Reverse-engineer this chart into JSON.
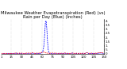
{
  "title": "Milwaukee Weather Evapotranspiration (Red) (vs) Rain per Day (Blue) (Inches)",
  "background_color": "#ffffff",
  "x_values": [
    1,
    2,
    3,
    4,
    5,
    6,
    7,
    8,
    9,
    10,
    11,
    12,
    13,
    14,
    15,
    16,
    17,
    18,
    19,
    20,
    21,
    22,
    23,
    24,
    25,
    26,
    27,
    28,
    29,
    30,
    31,
    32,
    33,
    34,
    35,
    36,
    37,
    38,
    39,
    40,
    41,
    42,
    43,
    44,
    45,
    46,
    47,
    48,
    49,
    50,
    51,
    52,
    53,
    54,
    55,
    56,
    57,
    58,
    59,
    60,
    61,
    62,
    63,
    64,
    65,
    66,
    67,
    68,
    69,
    70,
    71,
    72,
    73,
    74,
    75,
    76,
    77,
    78,
    79,
    80,
    81,
    82,
    83,
    84,
    85,
    86,
    87,
    88,
    89,
    90,
    91,
    92,
    93,
    94,
    95,
    96,
    97,
    98,
    99,
    100,
    101,
    102,
    103,
    104,
    105,
    106,
    107,
    108,
    109,
    110,
    111,
    112,
    113,
    114,
    115,
    116,
    117,
    118,
    119,
    120,
    121,
    122,
    123,
    124,
    125,
    126,
    127,
    128,
    129,
    130,
    131,
    132,
    133,
    134,
    135,
    136,
    137,
    138,
    139,
    140,
    141,
    142,
    143,
    144,
    145,
    146,
    147,
    148,
    149,
    150
  ],
  "blue_values": [
    0.05,
    0.0,
    0.0,
    0.05,
    0.0,
    0.05,
    0.0,
    0.0,
    0.05,
    0.05,
    0.0,
    0.0,
    0.05,
    0.05,
    0.0,
    0.05,
    0.0,
    0.0,
    0.0,
    0.05,
    0.05,
    0.0,
    0.1,
    0.05,
    0.0,
    0.1,
    0.05,
    0.0,
    0.0,
    0.05,
    0.05,
    0.0,
    0.0,
    0.0,
    0.05,
    0.0,
    0.05,
    0.0,
    0.0,
    0.05,
    0.05,
    0.0,
    0.0,
    0.0,
    0.05,
    0.1,
    0.05,
    0.0,
    0.0,
    0.0,
    0.05,
    0.05,
    0.0,
    0.0,
    0.05,
    0.0,
    0.05,
    0.05,
    0.1,
    0.15,
    0.3,
    0.6,
    1.2,
    2.5,
    3.9,
    4.0,
    3.0,
    1.5,
    0.5,
    0.15,
    0.05,
    0.0,
    0.0,
    0.05,
    0.05,
    0.0,
    0.0,
    0.05,
    0.05,
    0.0,
    0.0,
    0.0,
    0.0,
    0.05,
    0.05,
    0.0,
    0.05,
    0.05,
    0.0,
    0.0,
    0.05,
    0.05,
    0.1,
    0.05,
    0.0,
    0.0,
    0.05,
    0.05,
    0.0,
    0.0,
    0.0,
    0.05,
    0.05,
    0.1,
    0.05,
    0.0,
    0.0,
    0.0,
    0.05,
    0.05,
    0.0,
    0.0,
    0.05,
    0.05,
    0.0,
    0.0,
    0.0,
    0.05,
    0.05,
    0.0,
    0.0,
    0.05,
    0.05,
    0.1,
    0.15,
    0.1,
    0.05,
    0.0,
    0.0,
    0.05,
    0.05,
    0.0,
    0.05,
    0.0,
    0.0,
    0.05,
    0.05,
    0.0,
    0.0,
    0.05,
    0.05,
    0.05,
    0.1,
    0.05,
    0.1,
    0.1,
    0.05,
    0.0,
    0.0,
    0.05
  ],
  "red_values": [
    0.05,
    0.05,
    0.05,
    0.05,
    0.05,
    0.05,
    0.05,
    0.05,
    0.05,
    0.05,
    0.05,
    0.05,
    0.05,
    0.05,
    0.05,
    0.05,
    0.05,
    0.05,
    0.05,
    0.08,
    0.08,
    0.08,
    0.1,
    0.08,
    0.05,
    0.08,
    0.1,
    0.05,
    0.05,
    0.08,
    0.08,
    0.05,
    0.05,
    0.05,
    0.05,
    0.05,
    0.08,
    0.08,
    0.05,
    0.08,
    0.1,
    0.08,
    0.08,
    0.05,
    0.1,
    0.12,
    0.1,
    0.08,
    0.05,
    0.05,
    0.05,
    0.08,
    0.08,
    0.05,
    0.08,
    0.08,
    0.1,
    0.12,
    0.15,
    0.18,
    0.2,
    0.22,
    0.2,
    0.15,
    0.12,
    0.1,
    0.08,
    0.08,
    0.08,
    0.05,
    0.05,
    0.08,
    0.08,
    0.08,
    0.1,
    0.08,
    0.05,
    0.08,
    0.1,
    0.08,
    0.05,
    0.05,
    0.05,
    0.05,
    0.08,
    0.05,
    0.05,
    0.08,
    0.05,
    0.05,
    0.05,
    0.08,
    0.1,
    0.08,
    0.05,
    0.05,
    0.05,
    0.08,
    0.05,
    0.05,
    0.05,
    0.05,
    0.08,
    0.1,
    0.08,
    0.05,
    0.05,
    0.05,
    0.05,
    0.08,
    0.05,
    0.05,
    0.05,
    0.08,
    0.08,
    0.05,
    0.05,
    0.05,
    0.08,
    0.05,
    0.05,
    0.05,
    0.08,
    0.1,
    0.12,
    0.1,
    0.08,
    0.05,
    0.05,
    0.05,
    0.08,
    0.08,
    0.08,
    0.05,
    0.05,
    0.05,
    0.08,
    0.08,
    0.05,
    0.08,
    0.1,
    0.12,
    0.15,
    0.12,
    0.12,
    0.15,
    0.12,
    0.1,
    0.08,
    0.08
  ],
  "ylim": [
    0,
    4.2
  ],
  "yticks": [
    0,
    0.5,
    1.0,
    1.5,
    2.0,
    2.5,
    3.0,
    3.5,
    4.0
  ],
  "ytick_labels": [
    "0",
    ".5",
    "1.",
    "1.5",
    "2.",
    "2.5",
    "3.",
    "3.5",
    "4."
  ],
  "grid_color": "#aaaaaa",
  "blue_color": "#0000ff",
  "red_color": "#ff0000",
  "title_fontsize": 3.8,
  "tick_fontsize": 2.8,
  "line_width": 0.55,
  "vgrid_positions": [
    15,
    30,
    45,
    60,
    75,
    90,
    105,
    120,
    135,
    150
  ],
  "xtick_positions": [
    1,
    15,
    30,
    45,
    60,
    75,
    90,
    105,
    120,
    135,
    150
  ],
  "xtick_labels": [
    "1",
    "15",
    "30",
    "45",
    "60",
    "75",
    "90",
    "105",
    "120",
    "135",
    "150"
  ]
}
